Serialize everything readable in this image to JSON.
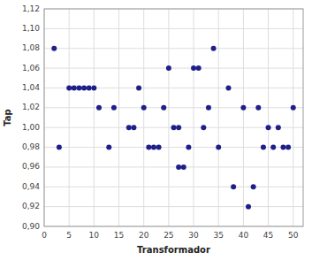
{
  "chart_data": {
    "type": "scatter",
    "xlabel": "Transformador",
    "ylabel": "Tap",
    "x": [
      2,
      3,
      5,
      6,
      7,
      8,
      9,
      10,
      11,
      13,
      14,
      17,
      18,
      19,
      20,
      21,
      22,
      23,
      24,
      25,
      26,
      27,
      27,
      28,
      29,
      30,
      31,
      32,
      33,
      34,
      35,
      37,
      38,
      40,
      41,
      42,
      43,
      44,
      45,
      46,
      47,
      48,
      49,
      50
    ],
    "values": [
      1.08,
      0.98,
      1.04,
      1.04,
      1.04,
      1.04,
      1.04,
      1.04,
      1.02,
      0.98,
      1.02,
      1.0,
      1.0,
      1.04,
      1.02,
      0.98,
      0.98,
      0.98,
      1.02,
      1.06,
      1.0,
      1.0,
      0.96,
      0.96,
      0.98,
      1.06,
      1.06,
      1.0,
      1.02,
      1.08,
      0.98,
      1.04,
      0.94,
      1.02,
      0.92,
      0.94,
      1.02,
      0.98,
      1.0,
      0.98,
      1.0,
      0.98,
      0.98,
      1.02
    ],
    "xlim": [
      0,
      52
    ],
    "ylim": [
      0.9,
      1.12
    ],
    "xticks": [
      0,
      5,
      10,
      15,
      20,
      25,
      30,
      35,
      40,
      45,
      50
    ],
    "yticks": [
      {
        "value": 0.9,
        "label": "0,90"
      },
      {
        "value": 0.92,
        "label": "0,92"
      },
      {
        "value": 0.94,
        "label": "0,94"
      },
      {
        "value": 0.96,
        "label": "0,96"
      },
      {
        "value": 0.98,
        "label": "0,98"
      },
      {
        "value": 1.0,
        "label": "1,00"
      },
      {
        "value": 1.02,
        "label": "1,02"
      },
      {
        "value": 1.04,
        "label": "1,04"
      },
      {
        "value": 1.06,
        "label": "1,06"
      },
      {
        "value": 1.08,
        "label": "1,08"
      },
      {
        "value": 1.1,
        "label": "1,10"
      },
      {
        "value": 1.12,
        "label": "1,12"
      }
    ],
    "color": "#1F1F8B",
    "grid": true
  }
}
